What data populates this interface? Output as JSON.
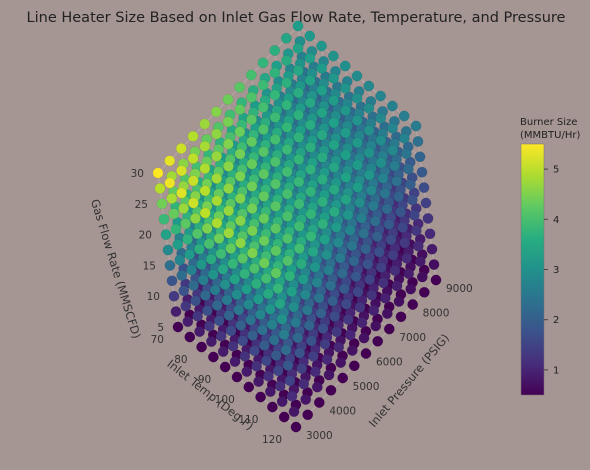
{
  "chart_data": {
    "type": "scatter3d",
    "title": "Line Heater Size Based on Inlet Gas Flow Rate, Temperature, and Pressure",
    "x_axis": {
      "label": "Inlet Temp (Deg F)",
      "range": [
        70,
        120
      ],
      "ticks": [
        70,
        80,
        90,
        100,
        110,
        120
      ],
      "values": [
        70,
        75,
        80,
        85,
        90,
        95,
        100,
        105,
        110,
        115,
        120
      ]
    },
    "y_axis": {
      "label": "Inlet Pressure (PSIG)",
      "range": [
        3000,
        9000
      ],
      "ticks": [
        3000,
        4000,
        5000,
        6000,
        7000,
        8000,
        9000
      ],
      "values": [
        3000,
        3500,
        4000,
        4500,
        5000,
        5500,
        6000,
        6500,
        7000,
        7500,
        8000,
        8500,
        9000
      ]
    },
    "z_axis": {
      "label": "Gas Flow Rate (MMSCFD)",
      "range": [
        5,
        30
      ],
      "ticks": [
        5,
        10,
        15,
        20,
        25,
        30
      ],
      "values": [
        5,
        7.5,
        10,
        12.5,
        15,
        17.5,
        20,
        22.5,
        25,
        27.5,
        30
      ]
    },
    "color_by": "Burner Size (MMBTU/Hr)",
    "colorscale": "Viridis",
    "colorbar": {
      "title_line1": "Burner Size",
      "title_line2": "(MMBTU/Hr)",
      "range": [
        0.5,
        5.5
      ],
      "ticks": [
        1,
        2,
        3,
        4,
        5
      ]
    },
    "burner_model": {
      "description_of_values": "burner size rises with flow rate and with inlet pressure, falls with inlet temperature",
      "min": 0.5,
      "max": 5.5
    }
  }
}
